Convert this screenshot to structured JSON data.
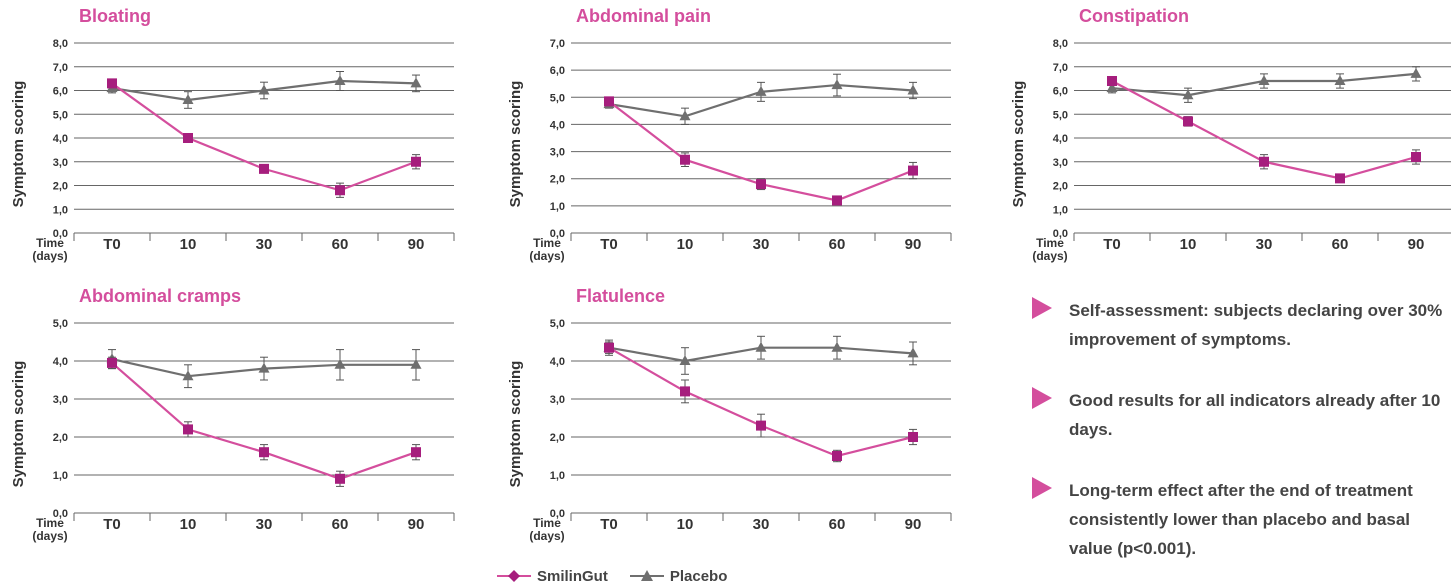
{
  "colors": {
    "smilingut": "#a61e7d",
    "placebo": "#6f6f6f",
    "title": "#d44e9d",
    "grid": "#666666",
    "text": "#333333"
  },
  "legend": {
    "smilingut": "SmilinGut",
    "placebo": "Placebo"
  },
  "notes": [
    "Self-assessment: subjects declaring over 30% improvement of symptoms.",
    "Good results for all indicators already after 10 days.",
    "Long-term effect after the end of treatment consistently lower than placebo and basal value (p<0.001)."
  ],
  "chart_data": [
    {
      "type": "line",
      "title": "Bloating",
      "ylabel": "Symptom scoring",
      "xlabel": [
        "Time",
        "(days)"
      ],
      "categories": [
        "T0",
        "10",
        "30",
        "60",
        "90"
      ],
      "ylim": [
        0,
        8
      ],
      "yticks": [
        "0,0",
        "1,0",
        "2,0",
        "3,0",
        "4,0",
        "5,0",
        "6,0",
        "7,0",
        "8,0"
      ],
      "series": [
        {
          "name": "SmilinGut",
          "values": [
            6.3,
            4.0,
            2.7,
            1.8,
            3.0
          ],
          "errors": [
            0.15,
            0.1,
            0.15,
            0.3,
            0.3
          ]
        },
        {
          "name": "Placebo",
          "values": [
            6.1,
            5.6,
            6.0,
            6.4,
            6.3
          ],
          "errors": [
            0.2,
            0.35,
            0.35,
            0.4,
            0.35
          ]
        }
      ]
    },
    {
      "type": "line",
      "title": "Abdominal pain",
      "ylabel": "Symptom scoring",
      "xlabel": [
        "Time",
        "(days)"
      ],
      "categories": [
        "T0",
        "10",
        "30",
        "60",
        "90"
      ],
      "ylim": [
        0,
        7
      ],
      "yticks": [
        "0,0",
        "1,0",
        "2,0",
        "3,0",
        "4,0",
        "5,0",
        "6,0",
        "7,0"
      ],
      "series": [
        {
          "name": "SmilinGut",
          "values": [
            4.85,
            2.7,
            1.8,
            1.2,
            2.3
          ],
          "errors": [
            0.15,
            0.25,
            0.2,
            0.15,
            0.3
          ]
        },
        {
          "name": "Placebo",
          "values": [
            4.75,
            4.3,
            5.2,
            5.45,
            5.25
          ],
          "errors": [
            0.15,
            0.3,
            0.35,
            0.4,
            0.3
          ]
        }
      ]
    },
    {
      "type": "line",
      "title": "Constipation",
      "ylabel": "Symptom scoring",
      "xlabel": [
        "Time",
        "(days)"
      ],
      "categories": [
        "T0",
        "10",
        "30",
        "60",
        "90"
      ],
      "ylim": [
        0,
        8
      ],
      "yticks": [
        "0,0",
        "1,0",
        "2,0",
        "3,0",
        "4,0",
        "5,0",
        "6,0",
        "7,0",
        "8,0"
      ],
      "series": [
        {
          "name": "SmilinGut",
          "values": [
            6.4,
            4.7,
            3.0,
            2.3,
            3.2
          ],
          "errors": [
            0.1,
            0.2,
            0.3,
            0.15,
            0.3
          ]
        },
        {
          "name": "Placebo",
          "values": [
            6.1,
            5.8,
            6.4,
            6.4,
            6.7
          ],
          "errors": [
            0.2,
            0.3,
            0.3,
            0.3,
            0.3
          ]
        }
      ]
    },
    {
      "type": "line",
      "title": "Abdominal cramps",
      "ylabel": "Symptom scoring",
      "xlabel": [
        "Time",
        "(days)"
      ],
      "categories": [
        "T0",
        "10",
        "30",
        "60",
        "90"
      ],
      "ylim": [
        0,
        5
      ],
      "yticks": [
        "0,0",
        "1,0",
        "2,0",
        "3,0",
        "4,0",
        "5,0"
      ],
      "series": [
        {
          "name": "SmilinGut",
          "values": [
            3.95,
            2.2,
            1.6,
            0.9,
            1.6
          ],
          "errors": [
            0.15,
            0.2,
            0.2,
            0.2,
            0.2
          ]
        },
        {
          "name": "Placebo",
          "values": [
            4.05,
            3.6,
            3.8,
            3.9,
            3.9
          ],
          "errors": [
            0.25,
            0.3,
            0.3,
            0.4,
            0.4
          ]
        }
      ]
    },
    {
      "type": "line",
      "title": "Flatulence",
      "ylabel": "Symptom scoring",
      "xlabel": [
        "Time",
        "(days)"
      ],
      "categories": [
        "T0",
        "10",
        "30",
        "60",
        "90"
      ],
      "ylim": [
        0,
        5
      ],
      "yticks": [
        "0,0",
        "1,0",
        "2,0",
        "3,0",
        "4,0",
        "5,0"
      ],
      "series": [
        {
          "name": "SmilinGut",
          "values": [
            4.35,
            3.2,
            2.3,
            1.5,
            2.0
          ],
          "errors": [
            0.15,
            0.3,
            0.3,
            0.15,
            0.2
          ]
        },
        {
          "name": "Placebo",
          "values": [
            4.35,
            4.0,
            4.35,
            4.35,
            4.2
          ],
          "errors": [
            0.2,
            0.35,
            0.3,
            0.3,
            0.3
          ]
        }
      ]
    }
  ]
}
